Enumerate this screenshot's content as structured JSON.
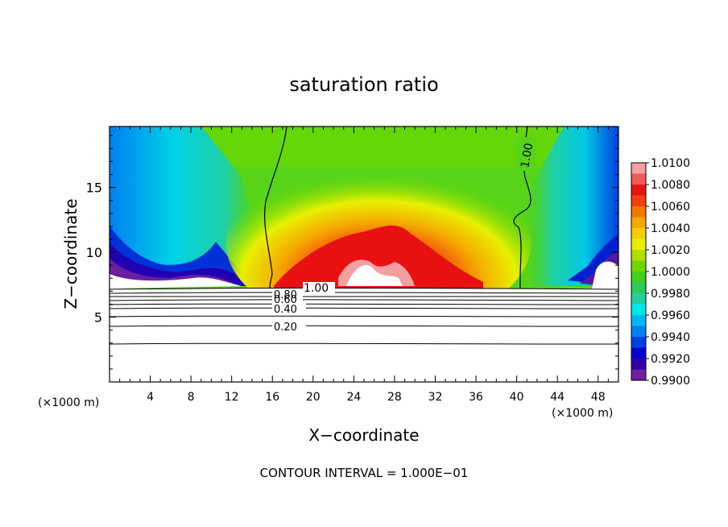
{
  "chart_data": {
    "type": "heatmap",
    "title": "saturation ratio",
    "xlabel": "X−coordinate",
    "ylabel": "Z−coordinate",
    "x_unit_left": "(×1000 m)",
    "x_unit_right": "(×1000 m)",
    "footer": "CONTOUR INTERVAL = 1.000E−01",
    "xlim": [
      0,
      50
    ],
    "ylim": [
      0,
      19.7
    ],
    "x_ticks": [
      4,
      8,
      12,
      16,
      20,
      24,
      28,
      32,
      36,
      40,
      44,
      48
    ],
    "x_tick_labels": [
      "4",
      "8",
      "12",
      "16",
      "20",
      "24",
      "28",
      "32",
      "36",
      "40",
      "44",
      "48"
    ],
    "y_ticks": [
      5,
      10,
      15
    ],
    "y_tick_labels": [
      "5",
      "10",
      "15"
    ],
    "colorbar": {
      "labels": [
        "1.0100",
        "1.0080",
        "1.0060",
        "1.0040",
        "1.0020",
        "1.0000",
        "0.9980",
        "0.9960",
        "0.9940",
        "0.9920",
        "0.9900"
      ],
      "colors_top_to_bottom": [
        "#f4a0a0",
        "#f05a5a",
        "#e81414",
        "#f04010",
        "#f07a00",
        "#f5a800",
        "#f5d000",
        "#e8f000",
        "#b0e000",
        "#70d800",
        "#40d020",
        "#30c860",
        "#20d0a0",
        "#00e8e8",
        "#00b8f0",
        "#0080f0",
        "#0040e0",
        "#0000d0",
        "#3000a8",
        "#7020a0"
      ]
    },
    "contour_labels": [
      "1.00",
      "1.00",
      "0.80",
      "0.60",
      "0.40",
      "0.20"
    ],
    "cloud_base_km": 7.3
  }
}
